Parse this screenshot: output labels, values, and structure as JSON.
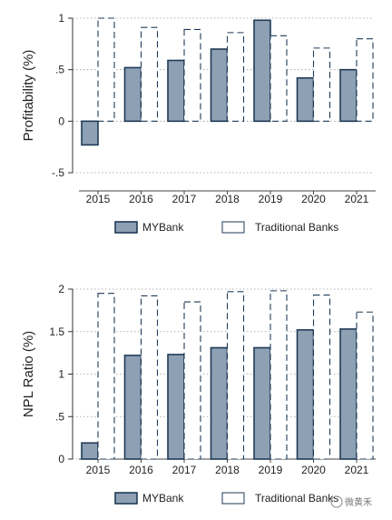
{
  "chart_data": [
    {
      "type": "bar",
      "ylabel": "Profitability (%)",
      "categories": [
        "2015",
        "2016",
        "2017",
        "2018",
        "2019",
        "2020",
        "2021"
      ],
      "ylim": [
        -0.5,
        1
      ],
      "yticks": [
        -0.5,
        0,
        0.5,
        1
      ],
      "ytick_labels": [
        "-.5",
        "0",
        ".5",
        "1"
      ],
      "grid": true,
      "series": [
        {
          "name": "MYBank",
          "values": [
            -0.23,
            0.52,
            0.59,
            0.7,
            0.98,
            0.42,
            0.5
          ],
          "fill": "#8ea0b4",
          "stroke": "#1f3b57"
        },
        {
          "name": "Traditional Banks",
          "values": [
            1.0,
            0.91,
            0.89,
            0.86,
            0.83,
            0.71,
            0.8
          ],
          "fill": "#ffffff",
          "stroke": "#1f3b57"
        }
      ],
      "legend": "bottom"
    },
    {
      "type": "bar",
      "ylabel": "NPL Ratio (%)",
      "categories": [
        "2015",
        "2016",
        "2017",
        "2018",
        "2019",
        "2020",
        "2021"
      ],
      "ylim": [
        0,
        2
      ],
      "yticks": [
        0,
        0.5,
        1,
        1.5,
        2
      ],
      "ytick_labels": [
        "0",
        ".5",
        "1",
        "1.5",
        "2"
      ],
      "grid": true,
      "series": [
        {
          "name": "MYBank",
          "values": [
            0.19,
            1.22,
            1.23,
            1.31,
            1.31,
            1.52,
            1.53
          ],
          "fill": "#8ea0b4",
          "stroke": "#1f3b57"
        },
        {
          "name": "Traditional Banks",
          "values": [
            1.95,
            1.92,
            1.85,
            1.97,
            1.98,
            1.93,
            1.73
          ],
          "fill": "#ffffff",
          "stroke": "#1f3b57"
        }
      ],
      "legend": "bottom"
    }
  ],
  "watermark": "微黄禾"
}
